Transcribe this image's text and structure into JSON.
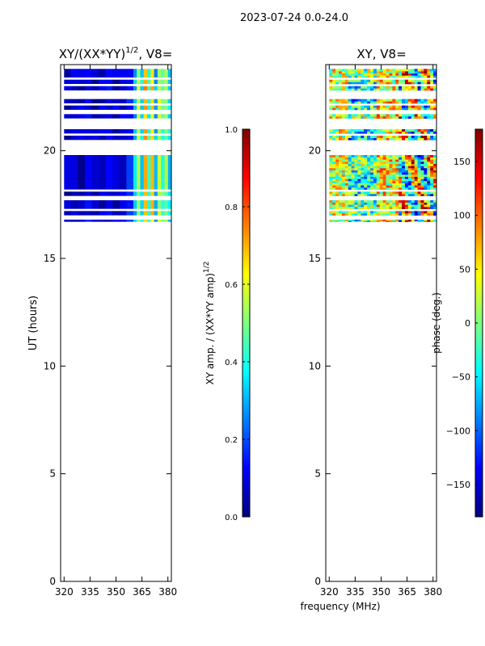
{
  "figure": {
    "suptitle": "2023-07-24 0.0-24.0"
  },
  "colors": {
    "jet": [
      "#00007f",
      "#0000ff",
      "#007fff",
      "#00ffff",
      "#7fff7f",
      "#ffff00",
      "#ff7f00",
      "#ff0000",
      "#7f0000"
    ],
    "axis": "#000000",
    "background": "#ffffff"
  },
  "chart_data": [
    {
      "type": "heatmap",
      "id": "amp",
      "title_base": "XY/(XX*YY)",
      "title_exp": "1/2",
      "title_suffix": ", V8=",
      "xlabel": "",
      "ylabel": "UT (hours)",
      "xlim": [
        318,
        382
      ],
      "ylim": [
        0,
        24
      ],
      "xticks": [
        320,
        335,
        350,
        365,
        380
      ],
      "yticks": [
        0,
        5,
        10,
        15,
        20
      ],
      "data_time_range": [
        16.7,
        24.0
      ],
      "cells": {
        "freq_columns": [
          320,
          324,
          328,
          332,
          336,
          340,
          344,
          348,
          352,
          356,
          360,
          362,
          364,
          366,
          368,
          370,
          372,
          374,
          376,
          378,
          380
        ],
        "column_values": [
          0.05,
          0.08,
          0.07,
          0.1,
          0.06,
          0.07,
          0.09,
          0.07,
          0.08,
          0.15,
          0.3,
          0.55,
          0.35,
          0.7,
          0.4,
          0.65,
          0.3,
          0.55,
          0.45,
          0.5,
          0.35
        ]
      },
      "time_bands": [
        [
          16.7,
          16.8
        ],
        [
          17.0,
          17.2
        ],
        [
          17.3,
          17.7
        ],
        [
          17.9,
          18.1
        ],
        [
          18.2,
          19.8
        ],
        [
          20.5,
          20.7
        ],
        [
          20.8,
          21.0
        ],
        [
          21.5,
          21.7
        ],
        [
          21.9,
          22.1
        ],
        [
          22.2,
          22.4
        ],
        [
          22.8,
          23.0
        ],
        [
          23.1,
          23.3
        ],
        [
          23.4,
          23.8
        ]
      ],
      "colorbar": {
        "label_base": "XY amp. / (XX*YY amp)",
        "label_exp": "1/2",
        "range": [
          0.0,
          1.0
        ],
        "ticks": [
          "0.0",
          "0.2",
          "0.4",
          "0.6",
          "0.8",
          "1.0"
        ]
      }
    },
    {
      "type": "heatmap",
      "id": "phase",
      "title": "XY, V8=",
      "xlabel": "frequency (MHz)",
      "ylabel": "",
      "xlim": [
        318,
        382
      ],
      "ylim": [
        0,
        24
      ],
      "xticks": [
        320,
        335,
        350,
        365,
        380
      ],
      "yticks": [
        0,
        5,
        10,
        15,
        20
      ],
      "data_time_range": [
        16.7,
        24.0
      ],
      "time_bands": [
        [
          16.7,
          16.8
        ],
        [
          17.0,
          17.2
        ],
        [
          17.3,
          17.7
        ],
        [
          17.9,
          18.1
        ],
        [
          18.2,
          19.8
        ],
        [
          20.5,
          20.7
        ],
        [
          20.8,
          21.0
        ],
        [
          21.5,
          21.7
        ],
        [
          21.9,
          22.1
        ],
        [
          22.2,
          22.4
        ],
        [
          22.8,
          23.0
        ],
        [
          23.1,
          23.3
        ],
        [
          23.4,
          23.8
        ]
      ],
      "colorbar": {
        "label": "phase (deg.)",
        "range": [
          -180,
          180
        ],
        "ticks": [
          "−150",
          "−100",
          "−50",
          "0",
          "50",
          "100",
          "150"
        ],
        "tick_values": [
          -150,
          -100,
          -50,
          0,
          50,
          100,
          150
        ]
      }
    }
  ]
}
